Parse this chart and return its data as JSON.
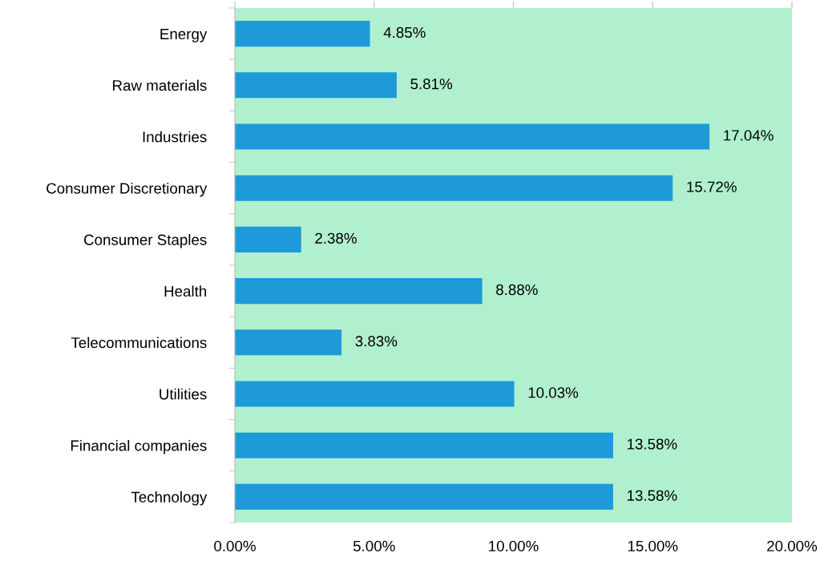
{
  "chart_data": {
    "type": "bar",
    "orientation": "horizontal",
    "categories": [
      "Energy",
      "Raw materials",
      "Industries",
      "Consumer Discretionary",
      "Consumer Staples",
      "Health",
      "Telecommunications",
      "Utilities",
      "Financial companies",
      "Technology"
    ],
    "values": [
      4.85,
      5.81,
      17.04,
      15.72,
      2.38,
      8.88,
      3.83,
      10.03,
      13.58,
      13.58
    ],
    "value_labels": [
      "4.85%",
      "5.81%",
      "17.04%",
      "15.72%",
      "2.38%",
      "8.88%",
      "3.83%",
      "10.03%",
      "13.58%",
      "13.58%"
    ],
    "color": "#1e9ad8",
    "xlim": [
      0,
      20
    ],
    "xticks": [
      {
        "value": 0,
        "label": "0.00%"
      },
      {
        "value": 5,
        "label": "5.00%"
      },
      {
        "value": 10,
        "label": "10.00%"
      },
      {
        "value": 15,
        "label": "15.00%"
      },
      {
        "value": 20,
        "label": "20.00%"
      }
    ],
    "grid": false,
    "legend": false
  }
}
